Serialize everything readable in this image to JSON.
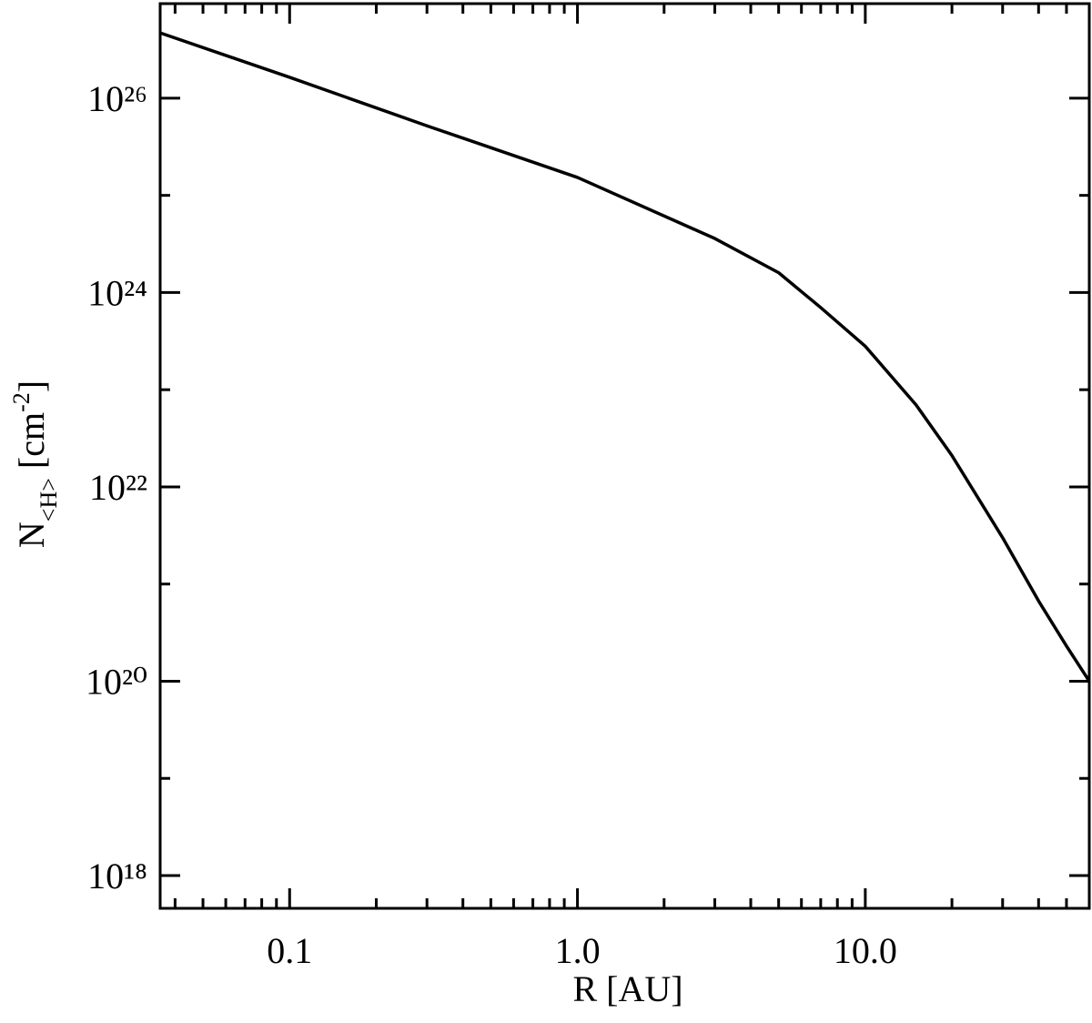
{
  "chart_data": {
    "type": "line",
    "x_label": "R [AU]",
    "y_label": [
      "N",
      "<H>",
      " [cm",
      "-2",
      "]"
    ],
    "xscale": "log",
    "yscale": "log",
    "xlim": [
      0.0355,
      60
    ],
    "ylim": [
      4.6e+17,
      9.4e+26
    ],
    "xticks": [
      0.1,
      {
        "value": 1,
        "label": "1.0"
      },
      {
        "value": 10,
        "label": "10.0"
      }
    ],
    "xminor": [
      0.04,
      0.05,
      0.06,
      0.07,
      0.08,
      0.09,
      0.2,
      0.3,
      0.4,
      0.5,
      0.6,
      0.7,
      0.8,
      0.9,
      2,
      3,
      4,
      5,
      6,
      7,
      8,
      9,
      20,
      30,
      40,
      50
    ],
    "yticks": [
      {
        "value": 1e+18,
        "label": "10¹⁸"
      },
      {
        "value": 1e+20,
        "label": "10²⁰"
      },
      {
        "value": 1e+22,
        "label": "10²²"
      },
      {
        "value": 1e+24,
        "label": "10²⁴"
      },
      {
        "value": 1e+26,
        "label": "10²⁶"
      }
    ],
    "yminor": [
      1e+19,
      1e+21,
      1e+23,
      1e+25
    ],
    "series": [
      {
        "color": "#000000",
        "x": [
          0.0355,
          0.1,
          0.3,
          1,
          3,
          5,
          7,
          10,
          15,
          20,
          30,
          40,
          50,
          60
        ],
        "values": [
          4.7e+26,
          1.64e+26,
          5.2e+25,
          1.53e+25,
          3.6e+24,
          1.6e+24,
          7e+23,
          2.8e+23,
          7e+22,
          2.1e+22,
          3e+21,
          6.7e+20,
          2.3e+20,
          1e+20
        ]
      }
    ]
  }
}
